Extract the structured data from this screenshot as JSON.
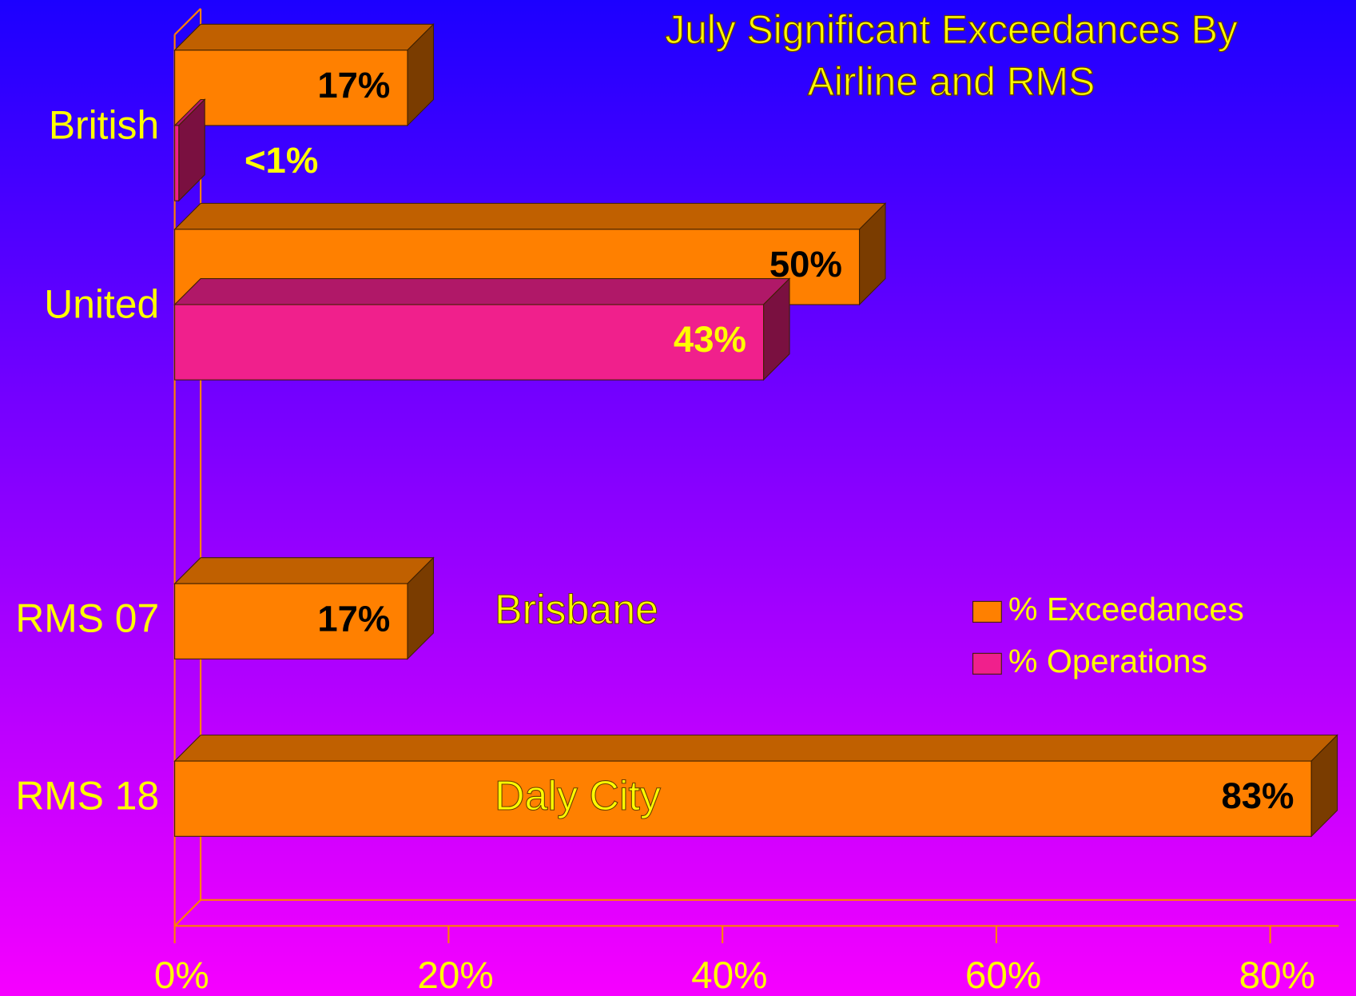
{
  "chart_data": {
    "type": "bar3d_horizontal",
    "title": "July Significant Exceedances By Airline and RMS",
    "categories": [
      "British",
      "United",
      "RMS 07",
      "RMS 18"
    ],
    "series": [
      {
        "name": "% Exceedances",
        "color": "#ff8000",
        "values": [
          17,
          50,
          17,
          83
        ],
        "value_labels": [
          "17%",
          "50%",
          "17%",
          "83%"
        ]
      },
      {
        "name": "% Operations",
        "color": "#f0208c",
        "values": [
          0.3,
          43,
          null,
          null
        ],
        "value_labels": [
          "<1%",
          "43%",
          null,
          null
        ]
      }
    ],
    "annotations": [
      "Brisbane",
      "Daly City"
    ],
    "xlim": [
      0,
      85
    ],
    "xticks": [
      {
        "value": 0,
        "label": "0%"
      },
      {
        "value": 20,
        "label": "20%"
      },
      {
        "value": 40,
        "label": "40%"
      },
      {
        "value": 60,
        "label": "60%"
      },
      {
        "value": 80,
        "label": "80%"
      }
    ],
    "legend": "right"
  }
}
